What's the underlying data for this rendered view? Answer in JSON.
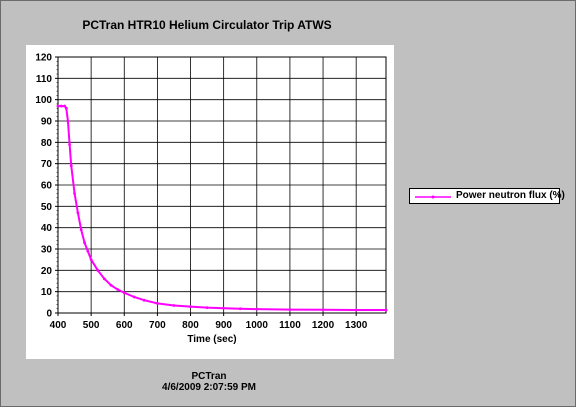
{
  "window": {
    "background": "#c0c0c0"
  },
  "footer": {
    "source": "PCTran",
    "timestamp": "4/6/2009 2:07:59 PM"
  },
  "chart_data": {
    "type": "line",
    "title": "PCTran HTR10 Helium Circulator Trip ATWS",
    "xlabel": "Time (sec)",
    "ylabel": "",
    "xlim": [
      400,
      1390
    ],
    "ylim": [
      0,
      120
    ],
    "xticks": [
      400,
      500,
      600,
      700,
      800,
      900,
      1000,
      1100,
      1200,
      1300
    ],
    "yticks": [
      0,
      10,
      20,
      30,
      40,
      50,
      60,
      70,
      80,
      90,
      100,
      110,
      120
    ],
    "grid": true,
    "legend_position": "right",
    "series": [
      {
        "name": "Power neutron flux (%)",
        "color": "#ff00ff",
        "x": [
          400,
          410,
          420,
          425,
          430,
          435,
          440,
          450,
          460,
          470,
          480,
          490,
          500,
          520,
          540,
          560,
          580,
          600,
          630,
          660,
          700,
          750,
          800,
          850,
          900,
          950,
          1000,
          1100,
          1200,
          1300,
          1390
        ],
        "y": [
          97,
          97,
          97,
          96,
          90,
          79,
          69,
          56,
          47,
          39,
          33,
          29,
          25,
          20,
          16,
          13,
          11,
          9.5,
          7.5,
          6,
          4.5,
          3.5,
          3,
          2.5,
          2.2,
          2,
          1.8,
          1.6,
          1.5,
          1.4,
          1.4
        ]
      }
    ]
  }
}
